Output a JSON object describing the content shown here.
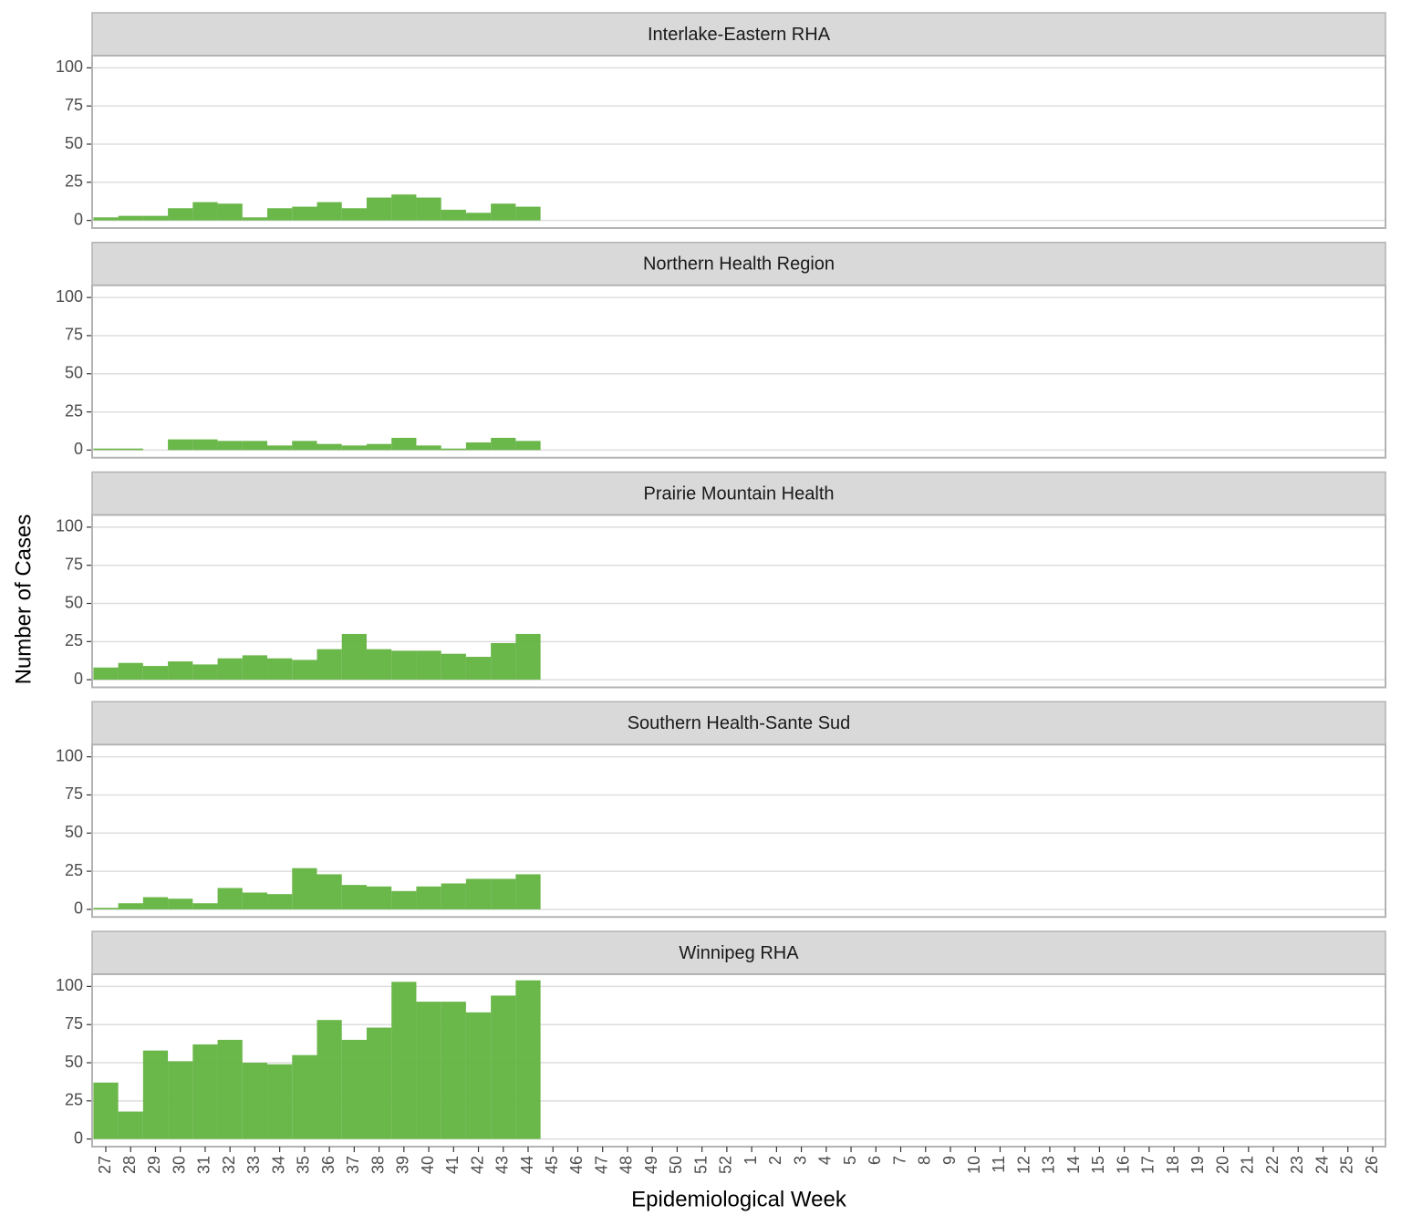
{
  "chart_data": [
    {
      "type": "bar",
      "title": "Interlake-Eastern RHA",
      "color": "#62b340",
      "values": [
        2,
        3,
        3,
        8,
        12,
        11,
        2,
        8,
        9,
        12,
        8,
        15,
        17,
        15,
        7,
        5,
        11,
        9,
        null,
        null,
        null,
        null,
        null,
        null,
        null,
        null,
        null,
        null,
        null,
        null,
        null,
        null,
        null,
        null,
        null,
        null,
        null,
        null,
        null,
        null,
        null,
        null,
        null,
        null,
        null,
        null,
        null,
        null,
        null,
        null,
        null,
        null
      ],
      "ylim": [
        -5,
        108
      ],
      "yticks": [
        0,
        25,
        50,
        75,
        100
      ],
      "grid": true
    },
    {
      "type": "bar",
      "title": "Northern Health Region",
      "color": "#62b340",
      "values": [
        1,
        1,
        0,
        7,
        7,
        6,
        6,
        3,
        6,
        4,
        3,
        4,
        8,
        3,
        1,
        5,
        8,
        6,
        null,
        null,
        null,
        null,
        null,
        null,
        null,
        null,
        null,
        null,
        null,
        null,
        null,
        null,
        null,
        null,
        null,
        null,
        null,
        null,
        null,
        null,
        null,
        null,
        null,
        null,
        null,
        null,
        null,
        null,
        null,
        null,
        null,
        null
      ],
      "ylim": [
        -5,
        108
      ],
      "yticks": [
        0,
        25,
        50,
        75,
        100
      ],
      "grid": true
    },
    {
      "type": "bar",
      "title": "Prairie Mountain Health",
      "color": "#62b340",
      "values": [
        8,
        11,
        9,
        12,
        10,
        14,
        16,
        14,
        13,
        20,
        30,
        20,
        19,
        19,
        17,
        15,
        24,
        30,
        null,
        null,
        null,
        null,
        null,
        null,
        null,
        null,
        null,
        null,
        null,
        null,
        null,
        null,
        null,
        null,
        null,
        null,
        null,
        null,
        null,
        null,
        null,
        null,
        null,
        null,
        null,
        null,
        null,
        null,
        null,
        null,
        null,
        null
      ],
      "ylim": [
        -5,
        108
      ],
      "yticks": [
        0,
        25,
        50,
        75,
        100
      ],
      "grid": true
    },
    {
      "type": "bar",
      "title": "Southern Health-Sante Sud",
      "color": "#62b340",
      "values": [
        1,
        4,
        8,
        7,
        4,
        14,
        11,
        10,
        27,
        23,
        16,
        15,
        12,
        15,
        17,
        20,
        20,
        23,
        null,
        null,
        null,
        null,
        null,
        null,
        null,
        null,
        null,
        null,
        null,
        null,
        null,
        null,
        null,
        null,
        null,
        null,
        null,
        null,
        null,
        null,
        null,
        null,
        null,
        null,
        null,
        null,
        null,
        null,
        null,
        null,
        null,
        null
      ],
      "ylim": [
        -5,
        108
      ],
      "yticks": [
        0,
        25,
        50,
        75,
        100
      ],
      "grid": true
    },
    {
      "type": "bar",
      "title": "Winnipeg RHA",
      "color": "#62b340",
      "x_label": "Epidemiological Week",
      "y_label": "Number of Cases",
      "categories": [
        "27",
        "28",
        "29",
        "30",
        "31",
        "32",
        "33",
        "34",
        "35",
        "36",
        "37",
        "38",
        "39",
        "40",
        "41",
        "42",
        "43",
        "44",
        "45",
        "46",
        "47",
        "48",
        "49",
        "50",
        "51",
        "52",
        "1",
        "2",
        "3",
        "4",
        "5",
        "6",
        "7",
        "8",
        "9",
        "10",
        "11",
        "12",
        "13",
        "14",
        "15",
        "16",
        "17",
        "18",
        "19",
        "20",
        "21",
        "22",
        "23",
        "24",
        "25",
        "26"
      ],
      "values": [
        37,
        18,
        58,
        51,
        62,
        65,
        50,
        49,
        55,
        78,
        65,
        73,
        103,
        90,
        90,
        83,
        94,
        104,
        null,
        null,
        null,
        null,
        null,
        null,
        null,
        null,
        null,
        null,
        null,
        null,
        null,
        null,
        null,
        null,
        null,
        null,
        null,
        null,
        null,
        null,
        null,
        null,
        null,
        null,
        null,
        null,
        null,
        null,
        null,
        null,
        null,
        null
      ],
      "ylim": [
        -5,
        108
      ],
      "yticks": [
        0,
        25,
        50,
        75,
        100
      ],
      "grid": true
    }
  ]
}
